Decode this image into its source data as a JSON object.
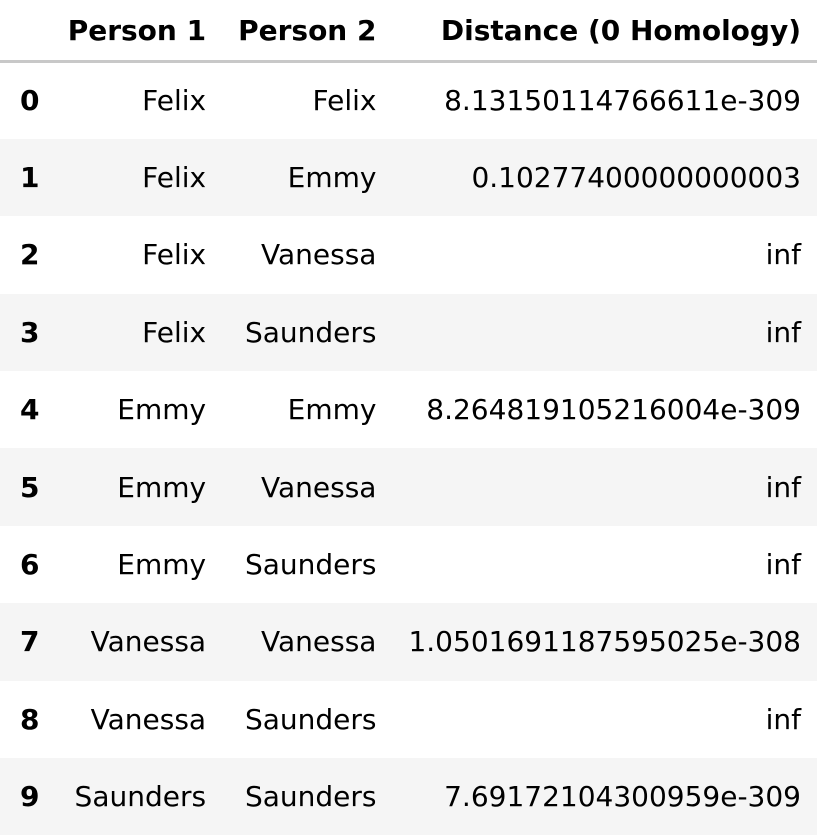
{
  "table": {
    "columns": [
      "",
      "Person 1",
      "Person 2",
      "Distance (0 Homology)"
    ],
    "rows": [
      {
        "index": "0",
        "person1": "Felix",
        "person2": "Felix",
        "distance": "8.13150114766611e-309"
      },
      {
        "index": "1",
        "person1": "Felix",
        "person2": "Emmy",
        "distance": "0.10277400000000003"
      },
      {
        "index": "2",
        "person1": "Felix",
        "person2": "Vanessa",
        "distance": "inf"
      },
      {
        "index": "3",
        "person1": "Felix",
        "person2": "Saunders",
        "distance": "inf"
      },
      {
        "index": "4",
        "person1": "Emmy",
        "person2": "Emmy",
        "distance": "8.264819105216004e-309"
      },
      {
        "index": "5",
        "person1": "Emmy",
        "person2": "Vanessa",
        "distance": "inf"
      },
      {
        "index": "6",
        "person1": "Emmy",
        "person2": "Saunders",
        "distance": "inf"
      },
      {
        "index": "7",
        "person1": "Vanessa",
        "person2": "Vanessa",
        "distance": "1.0501691187595025e-308"
      },
      {
        "index": "8",
        "person1": "Vanessa",
        "person2": "Saunders",
        "distance": "inf"
      },
      {
        "index": "9",
        "person1": "Saunders",
        "person2": "Saunders",
        "distance": "7.69172104300959e-309"
      }
    ]
  }
}
